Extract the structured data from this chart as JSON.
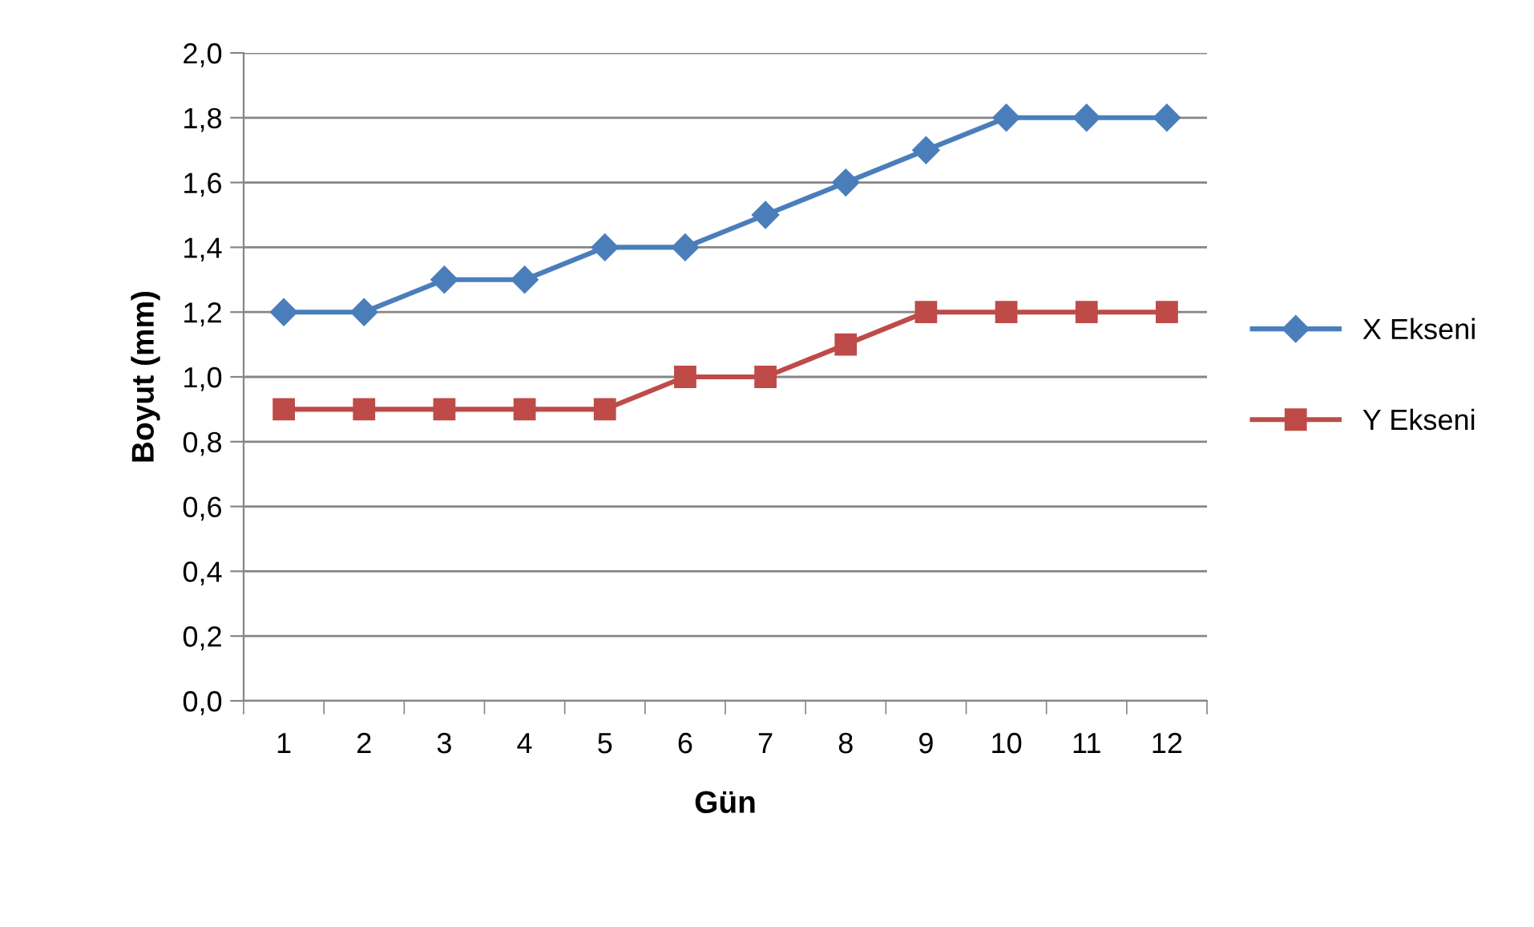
{
  "chart_data": {
    "type": "line",
    "xlabel": "Gün",
    "ylabel": "Boyut (mm)",
    "categories": [
      "1",
      "2",
      "3",
      "4",
      "5",
      "6",
      "7",
      "8",
      "9",
      "10",
      "11",
      "12"
    ],
    "series": [
      {
        "name": "X Ekseni",
        "color": "#4a7ebb",
        "marker": "diamond",
        "values": [
          1.2,
          1.2,
          1.3,
          1.3,
          1.4,
          1.4,
          1.5,
          1.6,
          1.7,
          1.8,
          1.8,
          1.8
        ]
      },
      {
        "name": "Y Ekseni",
        "color": "#be4b48",
        "marker": "square",
        "values": [
          0.9,
          0.9,
          0.9,
          0.9,
          0.9,
          1.0,
          1.0,
          1.1,
          1.2,
          1.2,
          1.2,
          1.2
        ]
      }
    ],
    "ylim": [
      0,
      2
    ],
    "yticks": [
      {
        "value": 0,
        "label": "0,0"
      },
      {
        "value": 0.2,
        "label": "0,2"
      },
      {
        "value": 0.4,
        "label": "0,4"
      },
      {
        "value": 0.6,
        "label": "0,6"
      },
      {
        "value": 0.8,
        "label": "0,8"
      },
      {
        "value": 1.0,
        "label": "1,0"
      },
      {
        "value": 1.2,
        "label": "1,2"
      },
      {
        "value": 1.4,
        "label": "1,4"
      },
      {
        "value": 1.6,
        "label": "1,6"
      },
      {
        "value": 1.8,
        "label": "1,8"
      },
      {
        "value": 2.0,
        "label": "2,0"
      }
    ],
    "grid": "y",
    "legend": "right",
    "line_style": "solid"
  }
}
